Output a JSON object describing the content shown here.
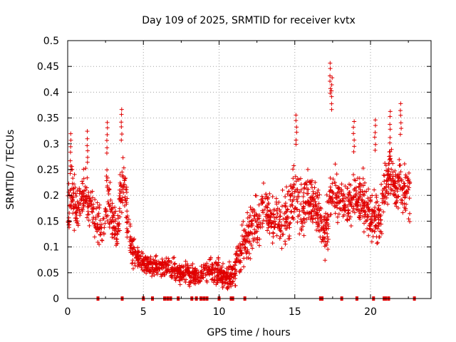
{
  "chart_data": {
    "type": "scatter",
    "title": "Day 109 of 2025, SRMTID for receiver kvtx",
    "xlabel": "GPS time / hours",
    "ylabel": "SRMTID / TECUs",
    "xlim": [
      0,
      24
    ],
    "ylim": [
      0,
      0.5
    ],
    "x_ticks": [
      0,
      5,
      10,
      15,
      20
    ],
    "x_tick_labels": [
      "0",
      "5",
      "10",
      "15",
      "20"
    ],
    "y_ticks": [
      0,
      0.05,
      0.1,
      0.15,
      0.2,
      0.25,
      0.3,
      0.35,
      0.4,
      0.45,
      0.5
    ],
    "y_tick_labels": [
      "0",
      "0.05",
      "0.1",
      "0.15",
      "0.2",
      "0.25",
      "0.3",
      "0.35",
      "0.4",
      "0.45",
      "0.5"
    ],
    "grid": true,
    "marker": "+",
    "color": "#e00000",
    "series": [
      {
        "name": "SRMTID",
        "profile_hours": [
          0,
          0.3,
          0.6,
          1.0,
          1.3,
          1.6,
          2.0,
          2.3,
          2.6,
          3.0,
          3.3,
          3.6,
          4.0,
          4.3,
          4.6,
          5.0,
          5.5,
          6.0,
          6.5,
          7.0,
          7.5,
          8.0,
          8.5,
          9.0,
          9.5,
          10.0,
          10.5,
          11.0,
          11.5,
          12.0,
          12.5,
          13.0,
          13.5,
          14.0,
          14.5,
          15.0,
          15.5,
          16.0,
          16.5,
          17.0,
          17.3,
          17.6,
          18.0,
          18.5,
          19.0,
          19.5,
          20.0,
          20.5,
          21.0,
          21.3,
          21.6,
          22.0,
          22.3,
          22.6
        ],
        "profile_median": [
          0.15,
          0.22,
          0.16,
          0.2,
          0.19,
          0.17,
          0.15,
          0.13,
          0.2,
          0.15,
          0.12,
          0.24,
          0.14,
          0.09,
          0.08,
          0.07,
          0.065,
          0.06,
          0.06,
          0.055,
          0.05,
          0.05,
          0.045,
          0.05,
          0.06,
          0.05,
          0.04,
          0.05,
          0.1,
          0.13,
          0.15,
          0.17,
          0.16,
          0.15,
          0.16,
          0.2,
          0.18,
          0.19,
          0.17,
          0.12,
          0.18,
          0.22,
          0.19,
          0.18,
          0.2,
          0.19,
          0.16,
          0.15,
          0.22,
          0.25,
          0.21,
          0.23,
          0.2,
          0.2
        ],
        "profile_spread": [
          0.05,
          0.06,
          0.04,
          0.05,
          0.05,
          0.04,
          0.05,
          0.04,
          0.06,
          0.05,
          0.04,
          0.06,
          0.04,
          0.03,
          0.02,
          0.02,
          0.02,
          0.02,
          0.02,
          0.02,
          0.02,
          0.02,
          0.02,
          0.02,
          0.025,
          0.025,
          0.02,
          0.03,
          0.04,
          0.05,
          0.05,
          0.05,
          0.05,
          0.05,
          0.05,
          0.06,
          0.06,
          0.05,
          0.05,
          0.05,
          0.07,
          0.06,
          0.04,
          0.04,
          0.05,
          0.05,
          0.05,
          0.05,
          0.05,
          0.05,
          0.04,
          0.05,
          0.05,
          0.05
        ],
        "peaks": [
          {
            "x": 17.35,
            "y": 0.46
          },
          {
            "x": 17.45,
            "y": 0.43
          },
          {
            "x": 15.1,
            "y": 0.36
          },
          {
            "x": 22.0,
            "y": 0.38
          },
          {
            "x": 21.3,
            "y": 0.365
          },
          {
            "x": 3.55,
            "y": 0.37
          },
          {
            "x": 20.3,
            "y": 0.35
          },
          {
            "x": 0.2,
            "y": 0.32
          },
          {
            "x": 1.3,
            "y": 0.325
          },
          {
            "x": 2.6,
            "y": 0.345
          },
          {
            "x": 18.9,
            "y": 0.345
          }
        ],
        "zero_flags_hours": [
          2.0,
          3.6,
          5.0,
          5.6,
          6.4,
          6.6,
          6.8,
          7.3,
          8.2,
          8.5,
          8.8,
          9.0,
          9.2,
          10.0,
          10.8,
          10.9,
          11.7,
          16.7,
          16.8,
          18.1,
          19.1,
          20.2,
          20.9,
          21.0,
          21.2,
          22.9
        ]
      }
    ]
  }
}
